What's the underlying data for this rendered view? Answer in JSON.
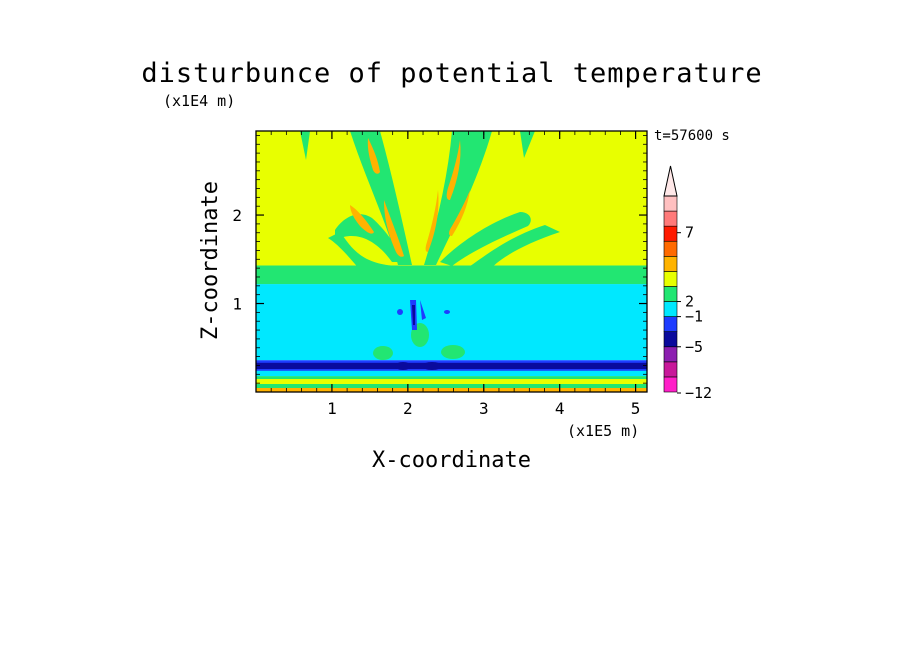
{
  "chart_data": {
    "type": "heatmap",
    "title": "disturbunce of potential temperature",
    "xlabel": "X-coordinate",
    "ylabel": "Z-coordinate",
    "x_unit": "(x1E5 m)",
    "y_unit": "(x1E4 m)",
    "time_label": "t=57600 s",
    "xlim": [
      0,
      5.15
    ],
    "ylim": [
      0,
      2.95
    ],
    "x_ticks": [
      "1",
      "2",
      "3",
      "4",
      "5"
    ],
    "y_ticks": [
      "1",
      "2"
    ],
    "colorbar": {
      "tick_labels": [
        "7",
        "2",
        "−1",
        "−5",
        "−12"
      ],
      "levels": [
        {
          "color": "#ff1fc8"
        },
        {
          "color": "#c8189a"
        },
        {
          "color": "#8c1fb0"
        },
        {
          "color": "#0a0a9c"
        },
        {
          "color": "#1e3cff"
        },
        {
          "color": "#00e8ff"
        },
        {
          "color": "#22e672"
        },
        {
          "color": "#e8ff00"
        },
        {
          "color": "#ffb300"
        },
        {
          "color": "#ff6a00"
        },
        {
          "color": "#ff1a00"
        },
        {
          "color": "#ff7a7a"
        },
        {
          "color": "#ffc0c0"
        }
      ],
      "overflow_color": "#ffe8e8"
    },
    "regions": [
      {
        "kind": "band",
        "z": [
          0,
          0.05
        ],
        "color": "#ffb300"
      },
      {
        "kind": "band",
        "z": [
          0.05,
          0.1
        ],
        "color": "#e8ff00"
      },
      {
        "kind": "band",
        "z": [
          0.1,
          0.18
        ],
        "color": "#22e672"
      },
      {
        "kind": "band",
        "z": [
          0.18,
          0.3
        ],
        "color": "#00e8ff"
      },
      {
        "kind": "band",
        "z": [
          0.24,
          0.36
        ],
        "color": "#1e3cff"
      },
      {
        "kind": "band",
        "z": [
          0.26,
          0.33
        ],
        "color": "#0a0a9c"
      },
      {
        "kind": "band",
        "z": [
          0.36,
          1.22
        ],
        "color": "#00e8ff"
      },
      {
        "kind": "band",
        "z": [
          1.22,
          1.43
        ],
        "color": "#22e672"
      },
      {
        "kind": "band",
        "z": [
          1.43,
          2.95
        ],
        "color": "#e8ff00"
      }
    ]
  }
}
